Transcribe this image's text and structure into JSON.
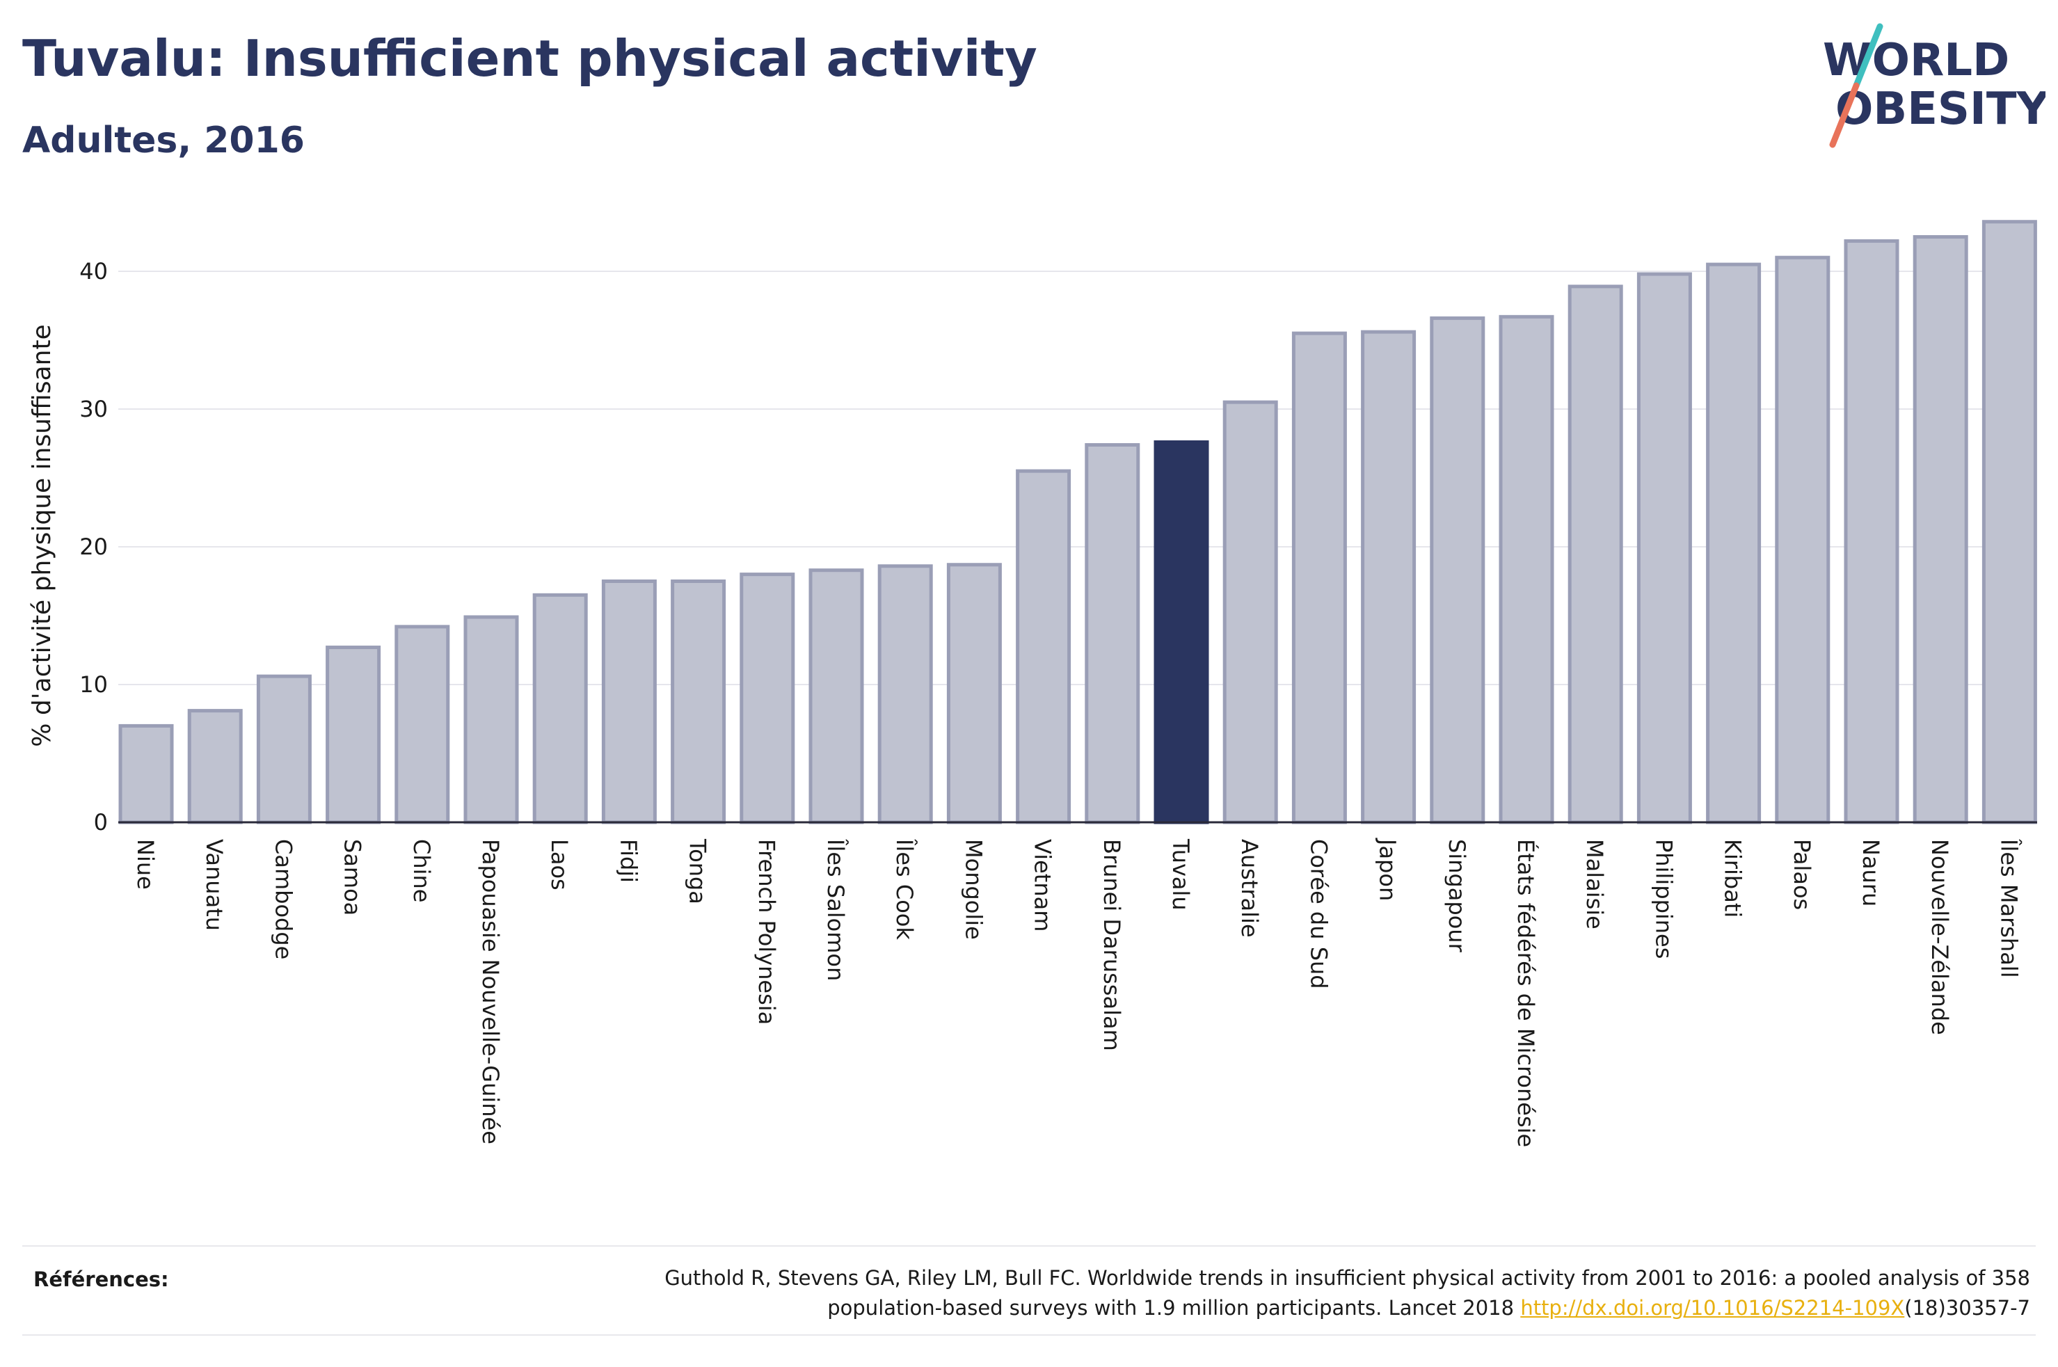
{
  "title": "Tuvalu: Insufficient physical activity",
  "subtitle": "Adultes, 2016",
  "logo": {
    "line1": "WORLD",
    "line2": "OBESITY",
    "text_color": "#2a3560",
    "slash_colors": [
      "#3fbfbf",
      "#e8735a"
    ]
  },
  "colors": {
    "bar_fill": "#bfc2d0",
    "bar_stroke": "#9a9eb6",
    "highlight": "#2a3560",
    "text": "#2a3560",
    "link": "#e8b00f"
  },
  "chart_data": {
    "type": "bar",
    "ylabel": "% d'activité physique insuffisante",
    "ylim": [
      0,
      45
    ],
    "yticks": [
      0,
      10,
      20,
      30,
      40
    ],
    "grid": true,
    "highlight": "Tuvalu",
    "categories": [
      "Niue",
      "Vanuatu",
      "Cambodge",
      "Samoa",
      "Chine",
      "Papouasie Nouvelle-Guinée",
      "Laos",
      "Fidji",
      "Tonga",
      "French Polynesia",
      "Îles Salomon",
      "Îles Cook",
      "Mongolie",
      "Vietnam",
      "Brunei Darussalam",
      "Tuvalu",
      "Australie",
      "Corée du Sud",
      "Japon",
      "Singapour",
      "États fédérés de Micronésie",
      "Malaisie",
      "Philippines",
      "Kiribati",
      "Palaos",
      "Nauru",
      "Nouvelle-Zélande",
      "Îles Marshall"
    ],
    "values": [
      7.0,
      8.1,
      10.6,
      12.7,
      14.2,
      14.9,
      16.5,
      17.5,
      17.5,
      18.0,
      18.3,
      18.6,
      18.7,
      25.5,
      27.4,
      27.6,
      30.5,
      35.5,
      35.6,
      36.6,
      36.7,
      38.9,
      39.8,
      40.5,
      41.0,
      42.2,
      42.5,
      43.6
    ]
  },
  "references": {
    "label": "Références:",
    "text_line1": "Guthold R, Stevens GA, Riley LM, Bull FC. Worldwide trends in insufficient physical activity from 2001 to 2016: a pooled analysis of 358",
    "text_line2_prefix": "population-based surveys with 1.9 million participants. Lancet 2018 ",
    "link_text": "http://dx.doi.org/10.1016/S2214-109X",
    "text_line2_suffix": "(18)30357-7"
  }
}
